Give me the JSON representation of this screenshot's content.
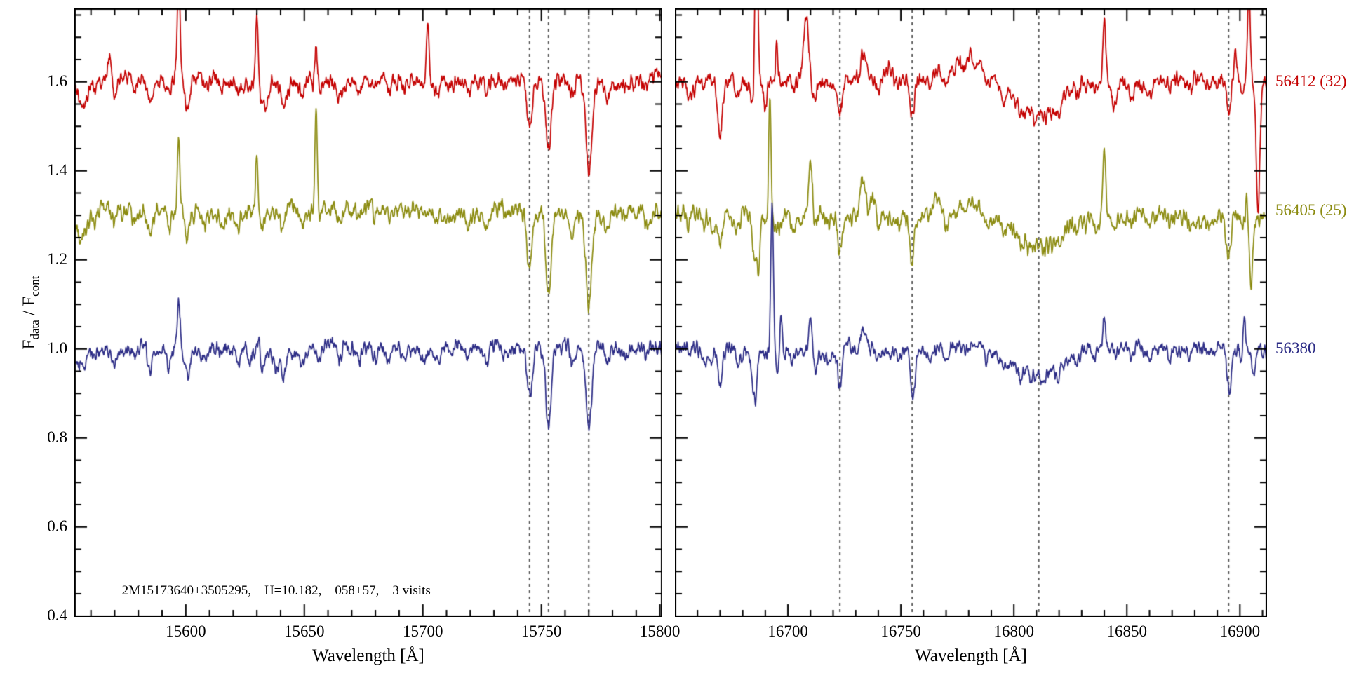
{
  "figure": {
    "background": "#ffffff"
  },
  "chart_data": {
    "type": "line",
    "title": "",
    "xlabel": "Wavelength [Å]",
    "ylabel": "F_data / F_cont",
    "ylabel_parts": {
      "f1": "F",
      "sub1": "data",
      "mid": " / F",
      "sub2": "cont"
    },
    "ylim": [
      0.398,
      1.765
    ],
    "yticks": [
      0.4,
      0.6,
      0.8,
      1.0,
      1.2,
      1.4,
      1.6
    ],
    "ytick_labels": [
      "0.4",
      "0.6",
      "0.8",
      "1.0",
      "1.2",
      "1.4",
      "1.6"
    ],
    "y_minor_step": 0.05,
    "x_minor_step": 10,
    "grid": false,
    "legend_position": "right-outside",
    "annotation": "2M15173640+3505295,    H=10.182,    058+57,    3 visits",
    "annotation_anchor": {
      "x": 15573,
      "y": 0.455
    },
    "dashed_line_color": "#555555",
    "spectra": [
      {
        "name": "56412 (32)",
        "color": "#c40000",
        "offset": 1.6,
        "label_y": 1.6,
        "noise": 0.011
      },
      {
        "name": "56405 (25)",
        "color": "#8b8b10",
        "offset": 1.3,
        "label_y": 1.31,
        "noise": 0.012
      },
      {
        "name": "56380",
        "color": "#2b2b85",
        "offset": 1.0,
        "label_y": 1.0,
        "noise": 0.01
      }
    ],
    "panels": [
      {
        "xlim": [
          15553,
          15801
        ],
        "xticks": [
          15600,
          15650,
          15700,
          15750,
          15800
        ],
        "xtick_labels": [
          "15600",
          "15650",
          "15700",
          "15750",
          "15800"
        ],
        "dashed_lines": [
          15745,
          15753,
          15770
        ],
        "common_lines": [
          [
            15562,
            -0.022,
            0.9
          ],
          [
            15570,
            -0.03,
            0.9
          ],
          [
            15578,
            -0.02,
            0.9
          ],
          [
            15585,
            -0.055,
            1.0
          ],
          [
            15593,
            -0.04,
            0.9
          ],
          [
            15600,
            -0.028,
            0.9
          ],
          [
            15608,
            -0.022,
            0.9
          ],
          [
            15615,
            -0.02,
            0.9
          ],
          [
            15622,
            -0.03,
            0.9
          ],
          [
            15632,
            -0.05,
            1.0
          ],
          [
            15641,
            -0.045,
            1.0
          ],
          [
            15649,
            -0.028,
            0.9
          ],
          [
            15656,
            -0.022,
            0.9
          ],
          [
            15665,
            -0.03,
            0.9
          ],
          [
            15673,
            -0.02,
            0.9
          ],
          [
            15680,
            -0.022,
            0.9
          ],
          [
            15686,
            -0.028,
            0.9
          ],
          [
            15692,
            -0.022,
            0.9
          ],
          [
            15700,
            -0.02,
            0.9
          ],
          [
            15706,
            -0.028,
            0.9
          ],
          [
            15712,
            -0.02,
            0.9
          ],
          [
            15719,
            -0.025,
            0.9
          ],
          [
            15727,
            -0.028,
            0.9
          ],
          [
            15735,
            -0.02,
            0.9
          ],
          [
            15745,
            -0.1,
            1.1
          ],
          [
            15753,
            -0.155,
            1.1
          ],
          [
            15763,
            -0.028,
            0.9
          ],
          [
            15770,
            -0.175,
            1.2
          ],
          [
            15778,
            -0.024,
            0.9
          ],
          [
            15786,
            -0.02,
            0.9
          ],
          [
            15794,
            -0.024,
            0.9
          ]
        ],
        "features": [
          [
            [
              15557,
              -0.05,
              2.0
            ],
            [
              15568,
              0.06,
              0.5
            ],
            [
              15597,
              0.24,
              0.6
            ],
            [
              15601,
              -0.05,
              0.8
            ],
            [
              15630,
              0.16,
              0.6
            ],
            [
              15634,
              -0.04,
              0.8
            ],
            [
              15655,
              0.09,
              0.5
            ],
            [
              15702,
              0.13,
              0.5
            ],
            [
              15753,
              -0.005,
              1.1
            ],
            [
              15770,
              -0.025,
              1.2
            ]
          ],
          [
            [
              15556,
              -0.05,
              2.5
            ],
            [
              15597,
              0.15,
              0.5
            ],
            [
              15601,
              -0.03,
              0.8
            ],
            [
              15630,
              0.13,
              0.5
            ],
            [
              15655,
              0.22,
              0.5
            ],
            [
              15680,
              0.02,
              50
            ],
            [
              15745,
              -0.04,
              1.1
            ],
            [
              15753,
              -0.045,
              1.1
            ],
            [
              15770,
              -0.025,
              1.2
            ]
          ],
          [
            [
              15556,
              -0.04,
              2.5
            ],
            [
              15597,
              0.1,
              0.5
            ],
            [
              15601,
              -0.04,
              0.8
            ],
            [
              15627,
              -0.03,
              0.8
            ],
            [
              15631,
              0.05,
              0.5
            ],
            [
              15638,
              -0.04,
              0.9
            ],
            [
              15745,
              -0.01,
              1.1
            ],
            [
              15753,
              -0.025,
              1.1
            ],
            [
              15770,
              -0.015,
              1.2
            ]
          ]
        ]
      },
      {
        "xlim": [
          16650,
          16912
        ],
        "xticks": [
          16700,
          16750,
          16800,
          16850,
          16900
        ],
        "xtick_labels": [
          "16700",
          "16750",
          "16800",
          "16850",
          "16900"
        ],
        "dashed_lines": [
          16723,
          16755,
          16811,
          16895
        ],
        "common_lines": [
          [
            16656,
            -0.02,
            0.9
          ],
          [
            16663,
            -0.025,
            0.9
          ],
          [
            16670,
            -0.075,
            1.0
          ],
          [
            16678,
            -0.028,
            0.9
          ],
          [
            16685,
            -0.09,
            0.9
          ],
          [
            16695,
            -0.022,
            0.9
          ],
          [
            16702,
            -0.025,
            0.9
          ],
          [
            16712,
            -0.028,
            0.9
          ],
          [
            16718,
            -0.02,
            0.9
          ],
          [
            16723,
            -0.085,
            1.0
          ],
          [
            16731,
            -0.024,
            0.9
          ],
          [
            16740,
            -0.028,
            0.9
          ],
          [
            16748,
            -0.02,
            0.9
          ],
          [
            16755,
            -0.095,
            1.0
          ],
          [
            16763,
            -0.02,
            0.9
          ],
          [
            16770,
            -0.028,
            0.9
          ],
          [
            16778,
            -0.02,
            0.9
          ],
          [
            16788,
            -0.024,
            0.9
          ],
          [
            16795,
            -0.02,
            0.9
          ],
          [
            16803,
            -0.022,
            0.9
          ],
          [
            16811,
            -0.065,
            10
          ],
          [
            16820,
            -0.02,
            0.9
          ],
          [
            16828,
            -0.024,
            0.9
          ],
          [
            16836,
            -0.02,
            0.9
          ],
          [
            16845,
            -0.02,
            0.9
          ],
          [
            16852,
            -0.028,
            0.9
          ],
          [
            16860,
            -0.02,
            0.9
          ],
          [
            16869,
            -0.024,
            0.9
          ],
          [
            16878,
            -0.02,
            0.9
          ],
          [
            16886,
            -0.02,
            0.9
          ],
          [
            16895,
            -0.085,
            1.0
          ],
          [
            16901,
            -0.028,
            0.9
          ]
        ],
        "features": [
          [
            [
              16658,
              -0.03,
              1.0
            ],
            [
              16670,
              -0.055,
              1.0
            ],
            [
              16686,
              0.38,
              0.7
            ],
            [
              16690,
              -0.05,
              0.8
            ],
            [
              16695,
              0.12,
              0.5
            ],
            [
              16708,
              0.15,
              1.0
            ],
            [
              16733,
              0.06,
              1.5
            ],
            [
              16745,
              0.03,
              2.0
            ],
            [
              16780,
              0.045,
              6.0
            ],
            [
              16811,
              -0.015,
              10
            ],
            [
              16840,
              0.15,
              0.6
            ],
            [
              16844,
              -0.03,
              0.8
            ],
            [
              16898,
              0.06,
              0.5
            ],
            [
              16904,
              0.2,
              0.6
            ],
            [
              16908,
              -0.3,
              0.8
            ]
          ],
          [
            [
              16667,
              -0.04,
              1.0
            ],
            [
              16687,
              -0.12,
              0.8
            ],
            [
              16692,
              0.27,
              0.5
            ],
            [
              16700,
              0.03,
              1.0
            ],
            [
              16710,
              0.13,
              0.8
            ],
            [
              16733,
              0.08,
              1.2
            ],
            [
              16738,
              0.04,
              1.0
            ],
            [
              16765,
              0.04,
              2.0
            ],
            [
              16780,
              0.03,
              5.0
            ],
            [
              16840,
              0.16,
              0.6
            ],
            [
              16903,
              0.05,
              0.5
            ],
            [
              16905,
              -0.16,
              0.8
            ]
          ],
          [
            [
              16666,
              -0.03,
              1.0
            ],
            [
              16686,
              -0.05,
              0.7
            ],
            [
              16693,
              0.35,
              0.6
            ],
            [
              16697,
              0.1,
              0.5
            ],
            [
              16710,
              0.08,
              0.8
            ],
            [
              16733,
              0.04,
              1.2
            ],
            [
              16756,
              -0.025,
              1.0
            ],
            [
              16780,
              0.02,
              5.0
            ],
            [
              16840,
              0.07,
              0.6
            ],
            [
              16896,
              -0.025,
              1.0
            ],
            [
              16902,
              0.09,
              0.5
            ],
            [
              16906,
              -0.07,
              0.8
            ]
          ]
        ]
      }
    ]
  }
}
